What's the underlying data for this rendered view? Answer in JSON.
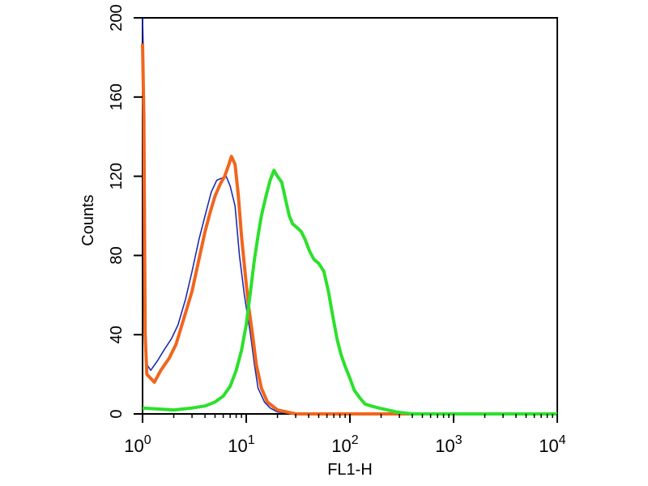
{
  "chart_data": {
    "type": "line",
    "xlabel": "FL1-H",
    "ylabel": "Counts",
    "x_scale": "log",
    "xlim": [
      1,
      10000
    ],
    "ylim": [
      0,
      200
    ],
    "x_ticks": [
      {
        "value": 1,
        "base": "10",
        "exp": "0"
      },
      {
        "value": 10,
        "base": "10",
        "exp": "1"
      },
      {
        "value": 100,
        "base": "10",
        "exp": "2"
      },
      {
        "value": 1000,
        "base": "10",
        "exp": "3"
      },
      {
        "value": 10000,
        "base": "10",
        "exp": "4"
      }
    ],
    "y_ticks": [
      "0",
      "40",
      "80",
      "120",
      "160",
      "200"
    ],
    "grid": false,
    "legend": "none",
    "series": [
      {
        "color": "#1f2bb0",
        "stroke": "thin",
        "points": [
          [
            1.0,
            200
          ],
          [
            1.02,
            180
          ],
          [
            1.05,
            60
          ],
          [
            1.1,
            25
          ],
          [
            1.2,
            22
          ],
          [
            1.4,
            27
          ],
          [
            1.6,
            32
          ],
          [
            1.9,
            38
          ],
          [
            2.2,
            45
          ],
          [
            2.6,
            58
          ],
          [
            3.0,
            72
          ],
          [
            3.5,
            88
          ],
          [
            4.0,
            100
          ],
          [
            4.6,
            112
          ],
          [
            5.2,
            118
          ],
          [
            5.8,
            119
          ],
          [
            6.4,
            120
          ],
          [
            7.0,
            115
          ],
          [
            7.8,
            105
          ],
          [
            8.6,
            80
          ],
          [
            9.6,
            60
          ],
          [
            11,
            40
          ],
          [
            12,
            25
          ],
          [
            13,
            13
          ],
          [
            15,
            6
          ],
          [
            17,
            3
          ],
          [
            20,
            1
          ],
          [
            30,
            0
          ],
          [
            1000,
            0
          ],
          [
            10000,
            0
          ]
        ]
      },
      {
        "color": "#f0661e",
        "stroke": "thick",
        "points": [
          [
            1.0,
            187
          ],
          [
            1.03,
            150
          ],
          [
            1.06,
            40
          ],
          [
            1.1,
            20
          ],
          [
            1.3,
            16
          ],
          [
            1.5,
            22
          ],
          [
            1.8,
            28
          ],
          [
            2.1,
            35
          ],
          [
            2.5,
            48
          ],
          [
            3.0,
            62
          ],
          [
            3.5,
            78
          ],
          [
            4.0,
            92
          ],
          [
            4.5,
            102
          ],
          [
            5.0,
            110
          ],
          [
            5.6,
            116
          ],
          [
            6.2,
            120
          ],
          [
            6.8,
            126
          ],
          [
            7.2,
            130
          ],
          [
            7.8,
            126
          ],
          [
            8.4,
            110
          ],
          [
            9.0,
            90
          ],
          [
            9.8,
            70
          ],
          [
            10.5,
            55
          ],
          [
            11.5,
            40
          ],
          [
            12.5,
            25
          ],
          [
            14,
            13
          ],
          [
            16,
            6
          ],
          [
            20,
            2
          ],
          [
            30,
            0
          ],
          [
            1000,
            0
          ],
          [
            10000,
            0
          ]
        ]
      },
      {
        "color": "#2de02d",
        "stroke": "thick",
        "points": [
          [
            1.0,
            3
          ],
          [
            2,
            2
          ],
          [
            3,
            3
          ],
          [
            4,
            4
          ],
          [
            5,
            6
          ],
          [
            6,
            9
          ],
          [
            7,
            14
          ],
          [
            8,
            22
          ],
          [
            9,
            32
          ],
          [
            10,
            45
          ],
          [
            11,
            62
          ],
          [
            12,
            78
          ],
          [
            13,
            90
          ],
          [
            14,
            100
          ],
          [
            15.5,
            110
          ],
          [
            17,
            118
          ],
          [
            18.5,
            123
          ],
          [
            20,
            120
          ],
          [
            22,
            117
          ],
          [
            24,
            108
          ],
          [
            26,
            100
          ],
          [
            28,
            96
          ],
          [
            31,
            94
          ],
          [
            34,
            92
          ],
          [
            37,
            88
          ],
          [
            41,
            82
          ],
          [
            45,
            78
          ],
          [
            50,
            76
          ],
          [
            56,
            72
          ],
          [
            62,
            62
          ],
          [
            68,
            50
          ],
          [
            75,
            38
          ],
          [
            82,
            30
          ],
          [
            90,
            24
          ],
          [
            100,
            18
          ],
          [
            110,
            12
          ],
          [
            125,
            8
          ],
          [
            140,
            5
          ],
          [
            160,
            4
          ],
          [
            190,
            3
          ],
          [
            230,
            2
          ],
          [
            280,
            1
          ],
          [
            400,
            0
          ],
          [
            1000,
            0
          ],
          [
            10000,
            0
          ]
        ]
      }
    ]
  }
}
